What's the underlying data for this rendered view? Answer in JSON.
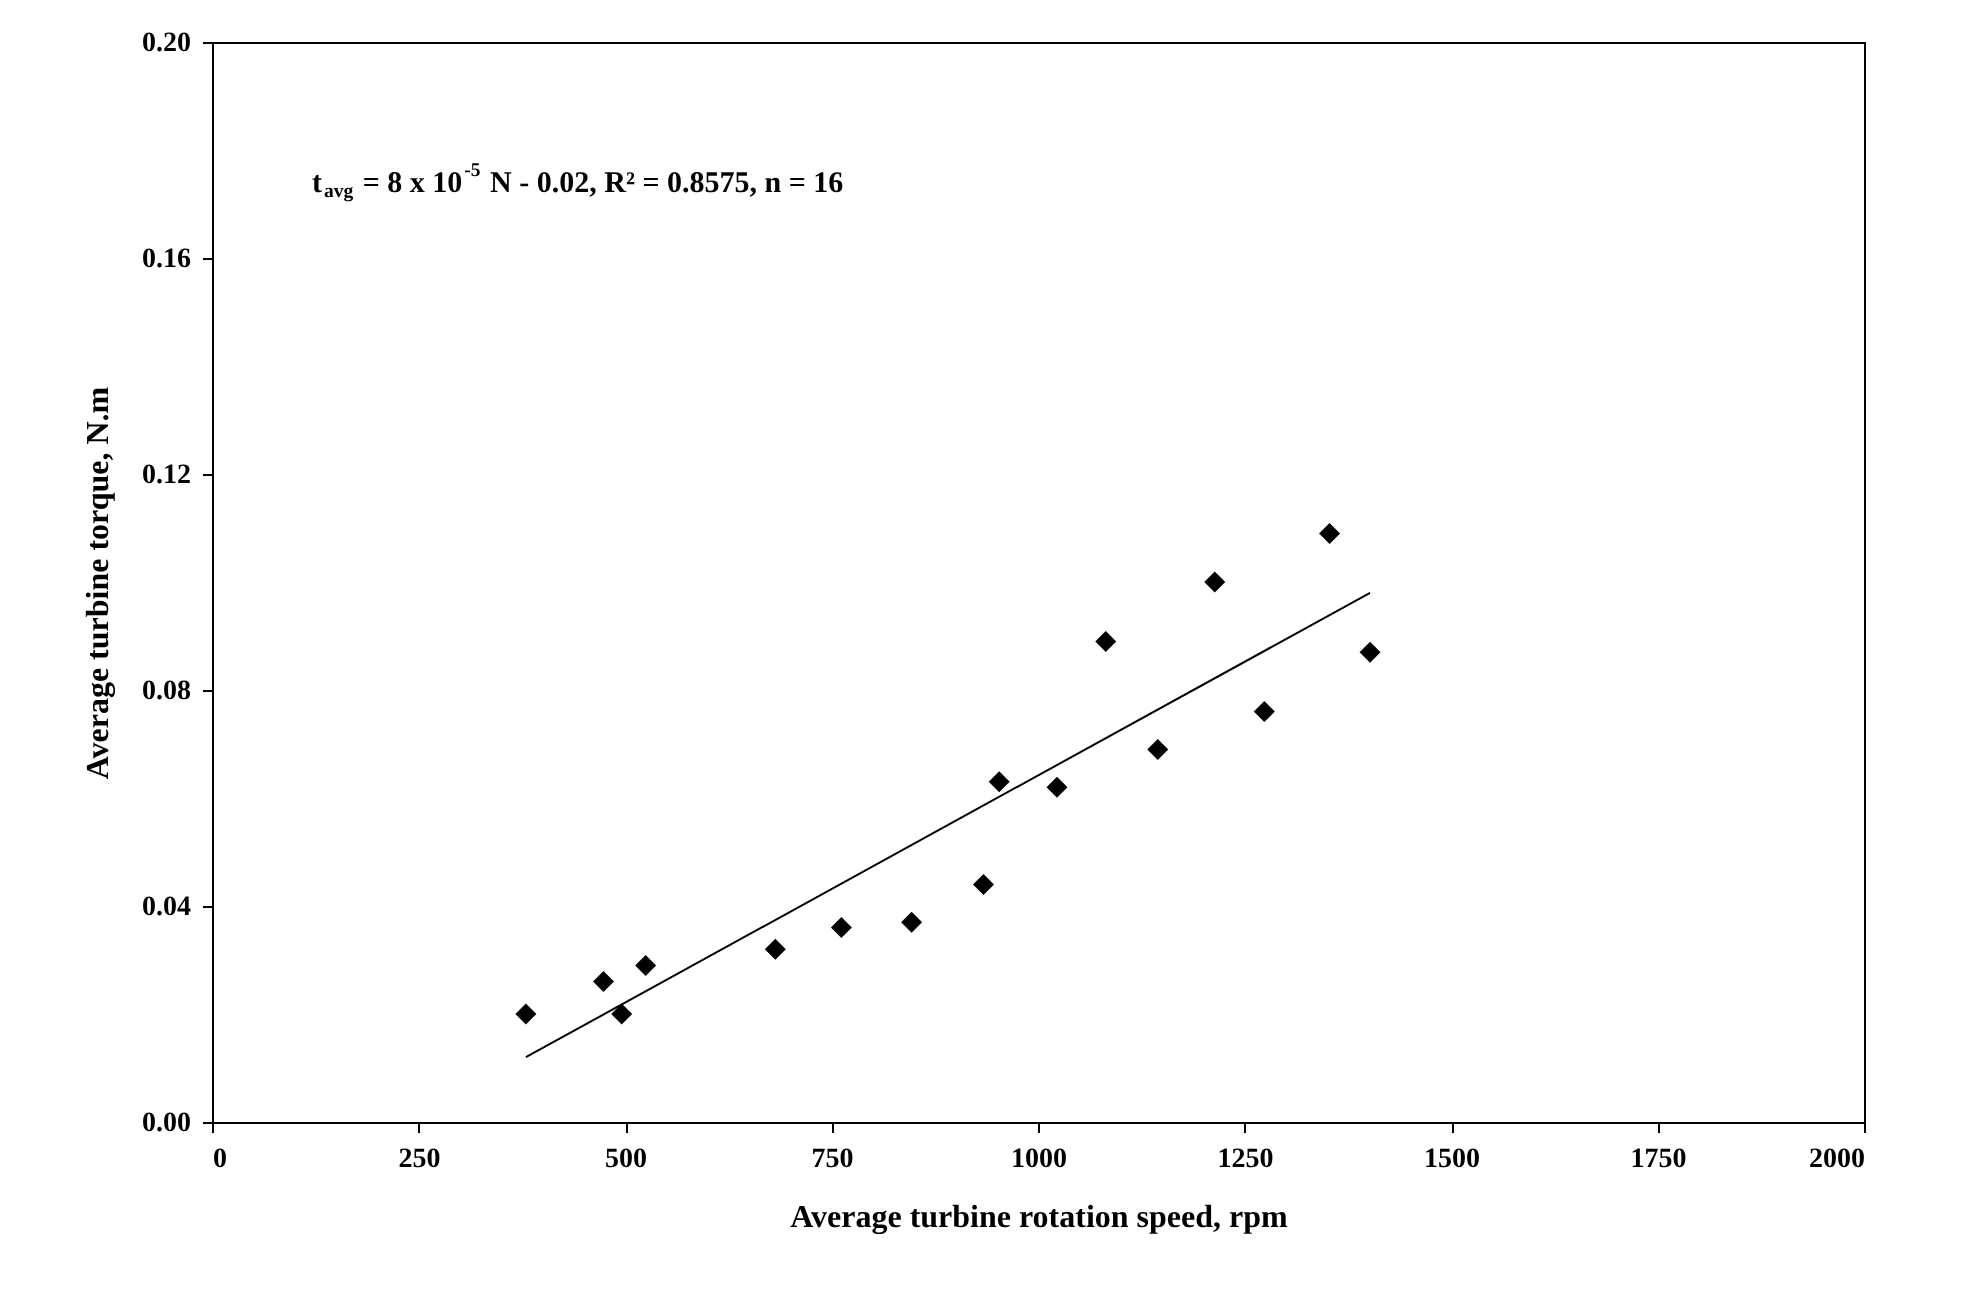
{
  "chart_data": {
    "type": "scatter",
    "xlabel": "Average  turbine rotation speed, rpm",
    "ylabel": "Average turbine torque, N.m",
    "annotations": [
      "t$_{avg}$ = 8 x 10$^{-5}$ N - 0.02,  R² = 0.8575,  n = 16"
    ],
    "series": [
      {
        "type": "scatter",
        "color": "#000000",
        "marker": "diamond",
        "x": [
          380,
          474,
          496,
          525,
          682,
          762,
          847,
          934,
          953,
          1023,
          1082,
          1145,
          1214,
          1274,
          1353,
          1402
        ],
        "values": [
          0.02,
          0.026,
          0.02,
          0.029,
          0.032,
          0.036,
          0.037,
          0.044,
          0.063,
          0.062,
          0.089,
          0.069,
          0.1,
          0.076,
          0.109,
          0.087
        ]
      },
      {
        "type": "line",
        "color": "#000000",
        "marker": "none",
        "line_style": "solid",
        "x": [
          380,
          1402
        ],
        "values": [
          0.012,
          0.098
        ]
      }
    ],
    "xlim": [
      0,
      2000
    ],
    "xticks": [
      0,
      250,
      500,
      750,
      1000,
      1250,
      1500,
      1750,
      2000
    ],
    "ylim": [
      0,
      0.2
    ],
    "yticks": [
      {
        "value": 0,
        "label": "0.00"
      },
      0.04,
      0.08,
      0.12,
      0.16,
      {
        "value": 0.2,
        "label": "0.20"
      }
    ],
    "grid": false,
    "legend": false
  }
}
